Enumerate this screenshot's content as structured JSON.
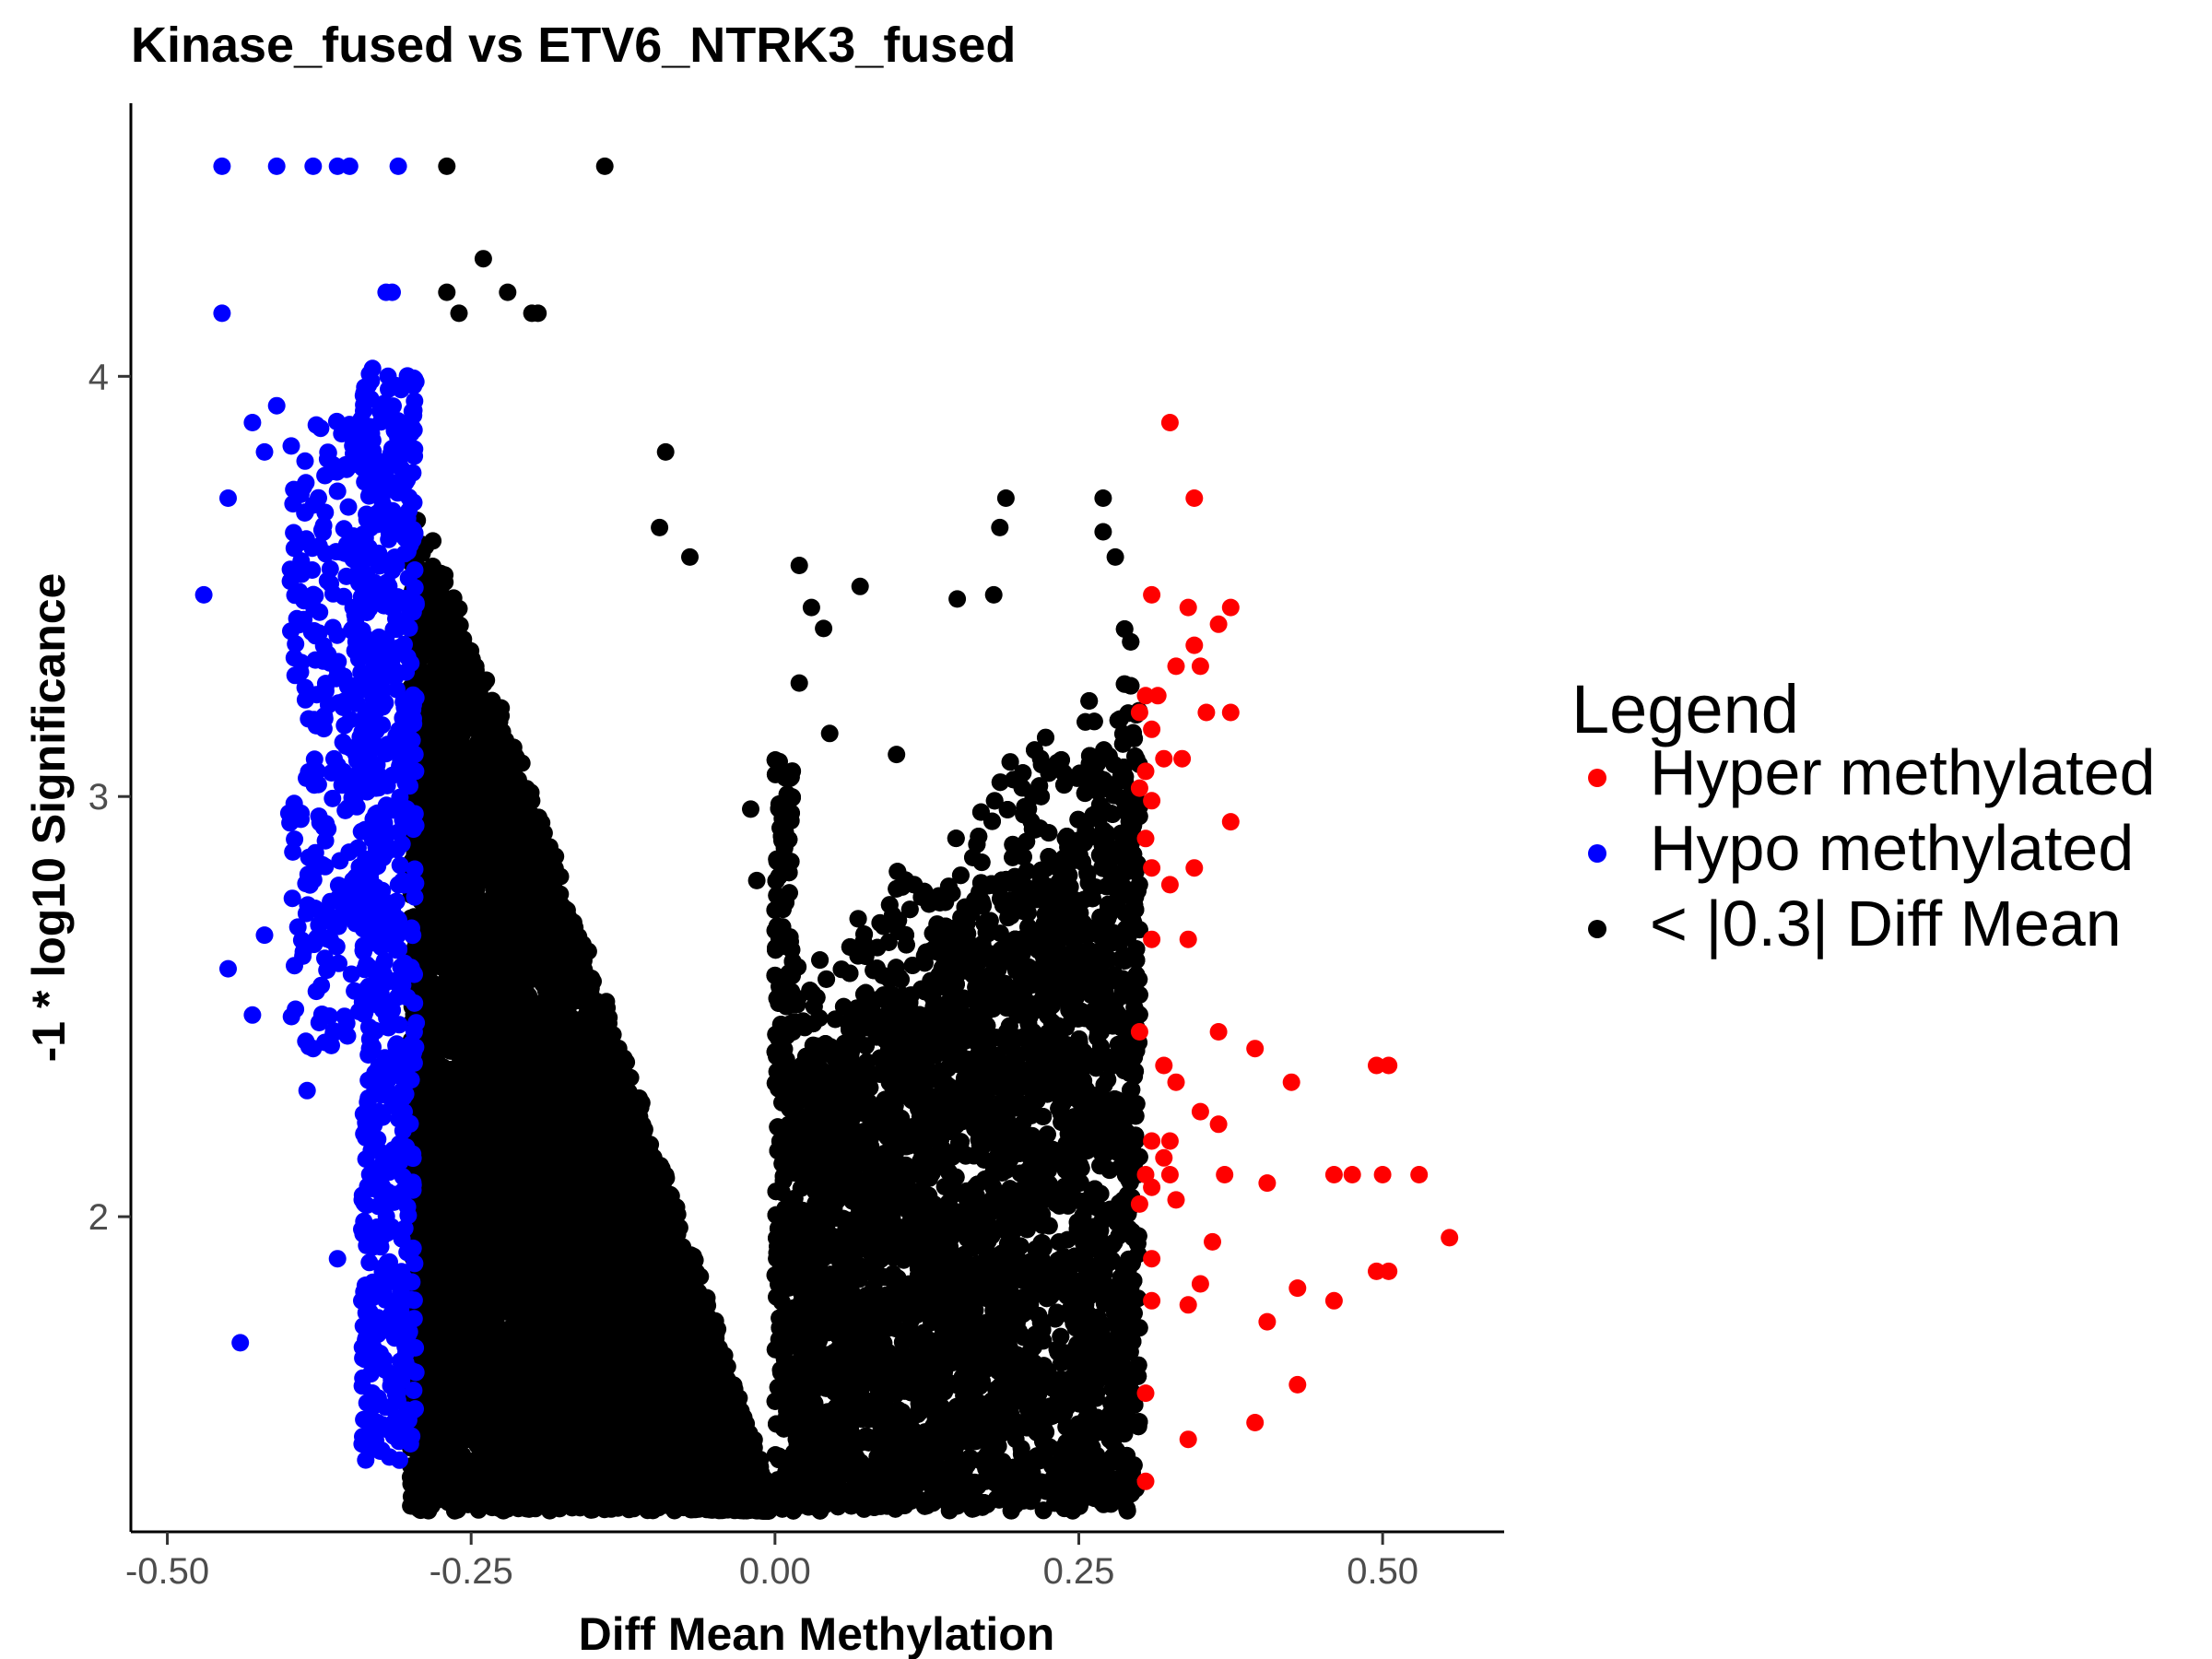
{
  "chart_data": {
    "type": "scatter",
    "title": "Kinase_fused vs ETV6_NTRK3_fused",
    "xlabel": "Diff Mean Methylation",
    "ylabel": "-1 * log10 Significance",
    "xlim": [
      -0.53,
      0.6
    ],
    "ylim": [
      1.25,
      4.65
    ],
    "x_ticks": [
      -0.5,
      -0.25,
      0.0,
      0.25,
      0.5
    ],
    "x_tick_labels": [
      "-0.50",
      "-0.25",
      "0.00",
      "0.25",
      "0.50"
    ],
    "y_ticks": [
      2,
      3,
      4
    ],
    "y_tick_labels": [
      "2",
      "3",
      "4"
    ],
    "grid": false,
    "legend": {
      "title": "Legend",
      "position": "right",
      "entries": [
        {
          "label": "Hyper methylated",
          "color": "#ff0000"
        },
        {
          "label": "Hypo methylated",
          "color": "#0000ff"
        },
        {
          "label": "< |0.3| Diff Mean",
          "color": "#000000"
        }
      ]
    },
    "series": [
      {
        "name": "Hyper methylated",
        "color": "#ff0000",
        "points": [
          [
            0.325,
            3.89
          ],
          [
            0.345,
            3.71
          ],
          [
            0.31,
            3.48
          ],
          [
            0.34,
            3.45
          ],
          [
            0.375,
            3.45
          ],
          [
            0.365,
            3.41
          ],
          [
            0.33,
            3.31
          ],
          [
            0.35,
            3.31
          ],
          [
            0.345,
            3.36
          ],
          [
            0.305,
            3.24
          ],
          [
            0.315,
            3.24
          ],
          [
            0.3,
            3.2
          ],
          [
            0.355,
            3.2
          ],
          [
            0.375,
            3.2
          ],
          [
            0.31,
            3.16
          ],
          [
            0.32,
            3.09
          ],
          [
            0.335,
            3.09
          ],
          [
            0.305,
            3.06
          ],
          [
            0.3,
            3.02
          ],
          [
            0.31,
            2.99
          ],
          [
            0.375,
            2.94
          ],
          [
            0.305,
            2.9
          ],
          [
            0.31,
            2.83
          ],
          [
            0.345,
            2.83
          ],
          [
            0.325,
            2.79
          ],
          [
            0.31,
            2.66
          ],
          [
            0.34,
            2.66
          ],
          [
            0.3,
            2.44
          ],
          [
            0.365,
            2.44
          ],
          [
            0.395,
            2.4
          ],
          [
            0.32,
            2.36
          ],
          [
            0.33,
            2.32
          ],
          [
            0.425,
            2.32
          ],
          [
            0.495,
            2.36
          ],
          [
            0.505,
            2.36
          ],
          [
            0.35,
            2.25
          ],
          [
            0.365,
            2.22
          ],
          [
            0.31,
            2.18
          ],
          [
            0.325,
            2.18
          ],
          [
            0.32,
            2.14
          ],
          [
            0.305,
            2.1
          ],
          [
            0.31,
            2.07
          ],
          [
            0.325,
            2.1
          ],
          [
            0.37,
            2.1
          ],
          [
            0.405,
            2.08
          ],
          [
            0.46,
            2.1
          ],
          [
            0.475,
            2.1
          ],
          [
            0.5,
            2.1
          ],
          [
            0.53,
            2.1
          ],
          [
            0.3,
            2.03
          ],
          [
            0.33,
            2.04
          ],
          [
            0.555,
            1.95
          ],
          [
            0.36,
            1.94
          ],
          [
            0.31,
            1.9
          ],
          [
            0.495,
            1.87
          ],
          [
            0.505,
            1.87
          ],
          [
            0.35,
            1.84
          ],
          [
            0.43,
            1.83
          ],
          [
            0.31,
            1.8
          ],
          [
            0.34,
            1.79
          ],
          [
            0.46,
            1.8
          ],
          [
            0.405,
            1.75
          ],
          [
            0.43,
            1.6
          ],
          [
            0.305,
            1.58
          ],
          [
            0.395,
            1.51
          ],
          [
            0.34,
            1.47
          ],
          [
            0.305,
            1.37
          ]
        ]
      },
      {
        "name": "Hypo methylated",
        "color": "#0000ff",
        "points": [
          [
            -0.455,
            4.5
          ],
          [
            -0.41,
            4.5
          ],
          [
            -0.38,
            4.5
          ],
          [
            -0.36,
            4.5
          ],
          [
            -0.35,
            4.5
          ],
          [
            -0.31,
            4.5
          ],
          [
            -0.455,
            4.15
          ],
          [
            -0.32,
            4.2
          ],
          [
            -0.315,
            4.2
          ],
          [
            -0.47,
            3.48
          ],
          [
            -0.45,
            3.71
          ],
          [
            -0.43,
            3.89
          ],
          [
            -0.41,
            3.93
          ],
          [
            -0.42,
            3.82
          ],
          [
            -0.45,
            2.59
          ],
          [
            -0.42,
            2.67
          ],
          [
            -0.43,
            2.48
          ],
          [
            -0.44,
            1.7
          ],
          [
            -0.4,
            2.96
          ],
          [
            -0.39,
            2.96
          ],
          [
            -0.38,
            2.4
          ],
          [
            -0.385,
            2.3
          ],
          [
            -0.36,
            1.9
          ],
          [
            -0.34,
            1.8
          ],
          [
            -0.34,
            1.97
          ]
        ],
        "band": {
          "x_range": [
            -0.4,
            -0.3
          ],
          "y_range": [
            1.42,
            4.03
          ]
        }
      },
      {
        "name": "< |0.3| Diff Mean",
        "color": "#000000",
        "points": [
          [
            -0.27,
            4.5
          ],
          [
            -0.14,
            4.5
          ],
          [
            -0.24,
            4.28
          ],
          [
            -0.27,
            4.2
          ],
          [
            -0.22,
            4.2
          ],
          [
            -0.26,
            4.15
          ],
          [
            -0.2,
            4.15
          ],
          [
            -0.195,
            4.15
          ],
          [
            -0.09,
            3.82
          ],
          [
            -0.095,
            3.64
          ],
          [
            -0.07,
            3.57
          ],
          [
            0.02,
            3.55
          ],
          [
            0.07,
            3.5
          ],
          [
            0.15,
            3.47
          ],
          [
            0.18,
            3.48
          ],
          [
            0.19,
            3.71
          ],
          [
            0.27,
            3.71
          ],
          [
            0.185,
            3.64
          ],
          [
            0.27,
            3.63
          ],
          [
            0.28,
            3.57
          ],
          [
            0.03,
            3.45
          ],
          [
            0.04,
            3.4
          ],
          [
            0.02,
            3.27
          ],
          [
            0.045,
            3.15
          ],
          [
            0.1,
            3.1
          ],
          [
            -0.02,
            2.97
          ],
          [
            -0.015,
            2.8
          ],
          [
            0.29,
            1.3
          ],
          [
            0.245,
            1.3
          ]
        ],
        "bands": [
          {
            "x_range": [
              -0.3,
              -0.005
            ],
            "y_range": [
              1.3,
              4.03
            ]
          },
          {
            "x_range": [
              0.0,
              0.3
            ],
            "y_range": [
              1.3,
              3.35
            ]
          }
        ]
      }
    ]
  }
}
